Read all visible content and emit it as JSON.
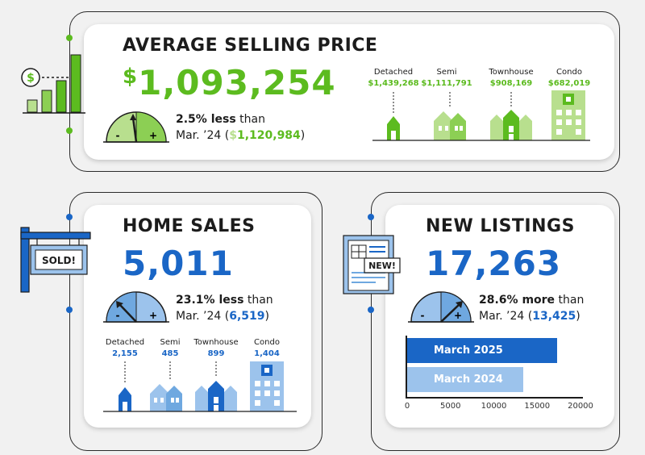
{
  "colors": {
    "green": "#5cbb1f",
    "light_green": "#b8df8e",
    "blue": "#1a66c6",
    "light_blue": "#9cc3ec"
  },
  "avg_price": {
    "title": "AVERAGE SELLING PRICE",
    "currency": "$",
    "value": "1,093,254",
    "change_text": "2.5% less",
    "than": " than",
    "prev_label": "Mar. ’24 (",
    "prev_currency": "$",
    "prev_value": "1,120,984",
    "prev_close": ")",
    "types": [
      {
        "label": "Detached",
        "value": "$1,439,268"
      },
      {
        "label": "Semi",
        "value": "$1,111,791"
      },
      {
        "label": "Townhouse",
        "value": "$908,169"
      },
      {
        "label": "Condo",
        "value": "$682,019"
      }
    ]
  },
  "home_sales": {
    "title": "HOME SALES",
    "sign": "SOLD!",
    "value": "5,011",
    "change_text": "23.1% less",
    "than": " than",
    "prev_label": "Mar. ’24 (",
    "prev_value": "6,519",
    "prev_close": ")",
    "types": [
      {
        "label": "Detached",
        "value": "2,155"
      },
      {
        "label": "Semi",
        "value": "485"
      },
      {
        "label": "Townhouse",
        "value": "899"
      },
      {
        "label": "Condo",
        "value": "1,404"
      }
    ]
  },
  "new_listings": {
    "title": "NEW LISTINGS",
    "badge": "NEW!",
    "value": "17,263",
    "change_text": "28.6% more",
    "than": " than",
    "prev_label": "Mar. ’24 (",
    "prev_value": "13,425",
    "prev_close": ")"
  },
  "gauge_marks": {
    "minus": "-",
    "plus": "+"
  },
  "chart_data": {
    "type": "bar",
    "orientation": "horizontal",
    "categories": [
      "March 2025",
      "March 2024"
    ],
    "values": [
      17263,
      13425
    ],
    "xlim": [
      0,
      20000
    ],
    "xticks": [
      "0",
      "5000",
      "10000",
      "15000",
      "20000"
    ]
  }
}
